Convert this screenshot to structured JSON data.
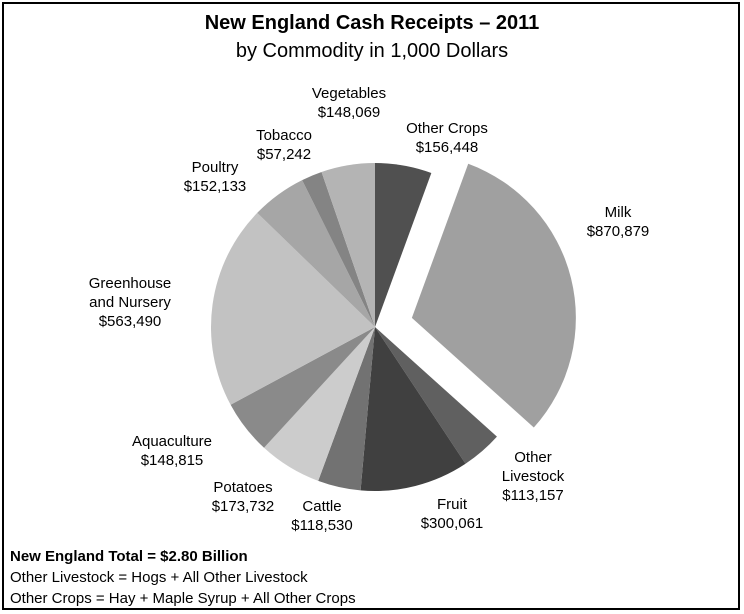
{
  "chart_data": {
    "type": "pie",
    "title": "New England Cash Receipts – 2011",
    "subtitle": "by Commodity in 1,000 Dollars",
    "slices": [
      {
        "label": "Other Crops",
        "value": 156448,
        "value_text": "$156,448",
        "color": "#505050"
      },
      {
        "label": "Milk",
        "value": 870879,
        "value_text": "$870,879",
        "color": "#a0a0a0",
        "exploded": true
      },
      {
        "label": "Other Livestock",
        "value": 113157,
        "value_text": "$113,157",
        "color": "#606060"
      },
      {
        "label": "Fruit",
        "value": 300061,
        "value_text": "$300,061",
        "color": "#404040"
      },
      {
        "label": "Cattle",
        "value": 118530,
        "value_text": "$118,530",
        "color": "#727272"
      },
      {
        "label": "Potatoes",
        "value": 173732,
        "value_text": "$173,732",
        "color": "#cccccc"
      },
      {
        "label": "Aquaculture",
        "value": 148815,
        "value_text": "$148,815",
        "color": "#8a8a8a"
      },
      {
        "label": "Greenhouse and Nursery",
        "value": 563490,
        "value_text": "$563,490",
        "color": "#c2c2c2"
      },
      {
        "label": "Poultry",
        "value": 152133,
        "value_text": "$152,133",
        "color": "#a6a6a6"
      },
      {
        "label": "Tobacco",
        "value": 57242,
        "value_text": "$57,242",
        "color": "#848484"
      },
      {
        "label": "Vegetables",
        "value": 148069,
        "value_text": "$148,069",
        "color": "#b4b4b4"
      }
    ]
  },
  "footer": {
    "total": "New England Total = $2.80 Billion",
    "note1": "Other Livestock = Hogs + All Other Livestock",
    "note2": "Other Crops = Hay +  Maple Syrup + All Other Crops"
  }
}
